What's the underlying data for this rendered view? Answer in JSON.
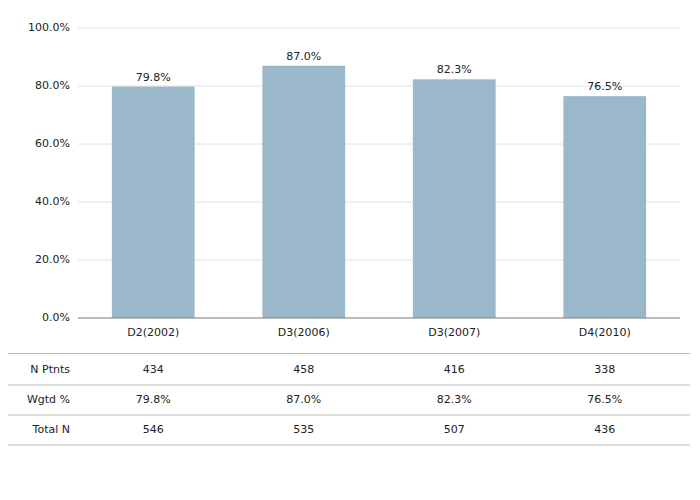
{
  "chart_data": {
    "type": "bar",
    "categories": [
      "D2(2002)",
      "D3(2006)",
      "D3(2007)",
      "D4(2010)"
    ],
    "values": [
      79.8,
      87.0,
      82.3,
      76.5
    ],
    "value_labels": [
      "79.8%",
      "87.0%",
      "82.3%",
      "76.5%"
    ],
    "data_labels": true,
    "color": "#9ab8ca",
    "ylim": [
      0,
      100
    ],
    "yticks": [
      {
        "value": 0,
        "label": "0.0%"
      },
      {
        "value": 20,
        "label": "20.0%"
      },
      {
        "value": 40,
        "label": "40.0%"
      },
      {
        "value": 60,
        "label": "60.0%"
      },
      {
        "value": 80,
        "label": "80.0%"
      },
      {
        "value": 100,
        "label": "100.0%"
      }
    ],
    "grid": true,
    "table": {
      "rows": [
        {
          "name": "N Ptnts",
          "values": [
            434,
            458,
            416,
            338
          ]
        },
        {
          "name": "Wgtd %",
          "values": [
            79.8,
            87.0,
            82.3,
            76.5
          ],
          "value_labels": [
            "79.8%",
            "87.0%",
            "82.3%",
            "76.5%"
          ]
        },
        {
          "name": "Total N",
          "values": [
            546,
            535,
            507,
            436
          ]
        }
      ]
    }
  }
}
